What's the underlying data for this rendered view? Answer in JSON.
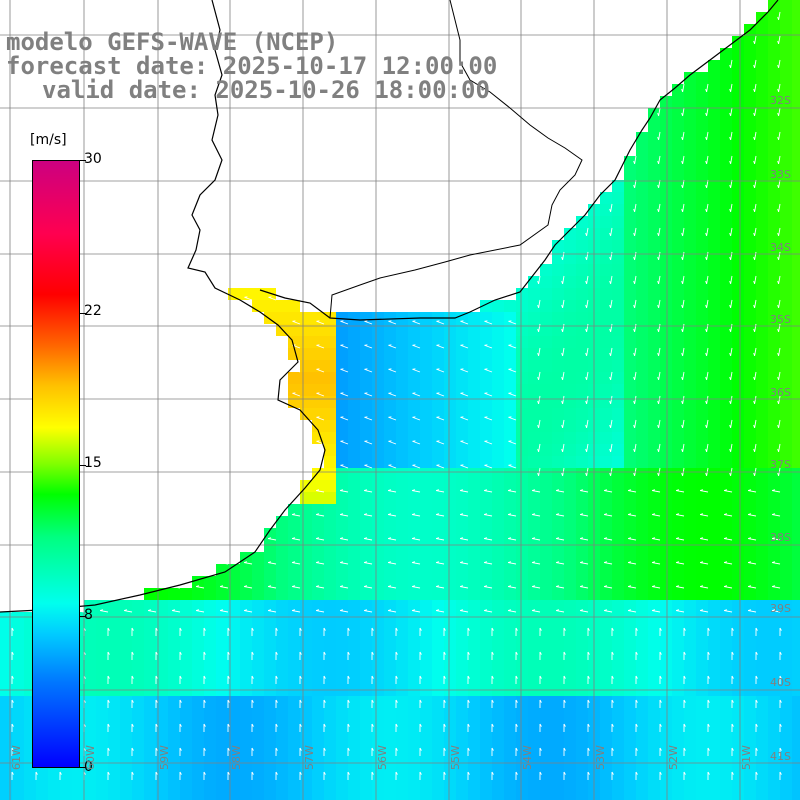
{
  "title": {
    "line1": "modelo GEFS-WAVE (NCEP)",
    "line2": "forecast date: 2025-10-17 12:00:00",
    "line3": "valid date: 2025-10-26 18:00:00"
  },
  "colorbar": {
    "unit": "[m/s]",
    "ticks": [
      "30",
      "22",
      "15",
      "8",
      "0"
    ]
  },
  "lat_labels": [
    "32S",
    "33S",
    "34S",
    "35S",
    "36S",
    "37S",
    "38S",
    "39S",
    "40S",
    "41S"
  ],
  "lon_labels": [
    "61W",
    "60W",
    "59W",
    "58W",
    "57W",
    "56W",
    "55W",
    "54W",
    "53W",
    "52W",
    "51W"
  ],
  "colors": {
    "land": "#ffffff",
    "grid": "#808080",
    "coast": "#000000",
    "arrows": "#ffffff"
  }
}
